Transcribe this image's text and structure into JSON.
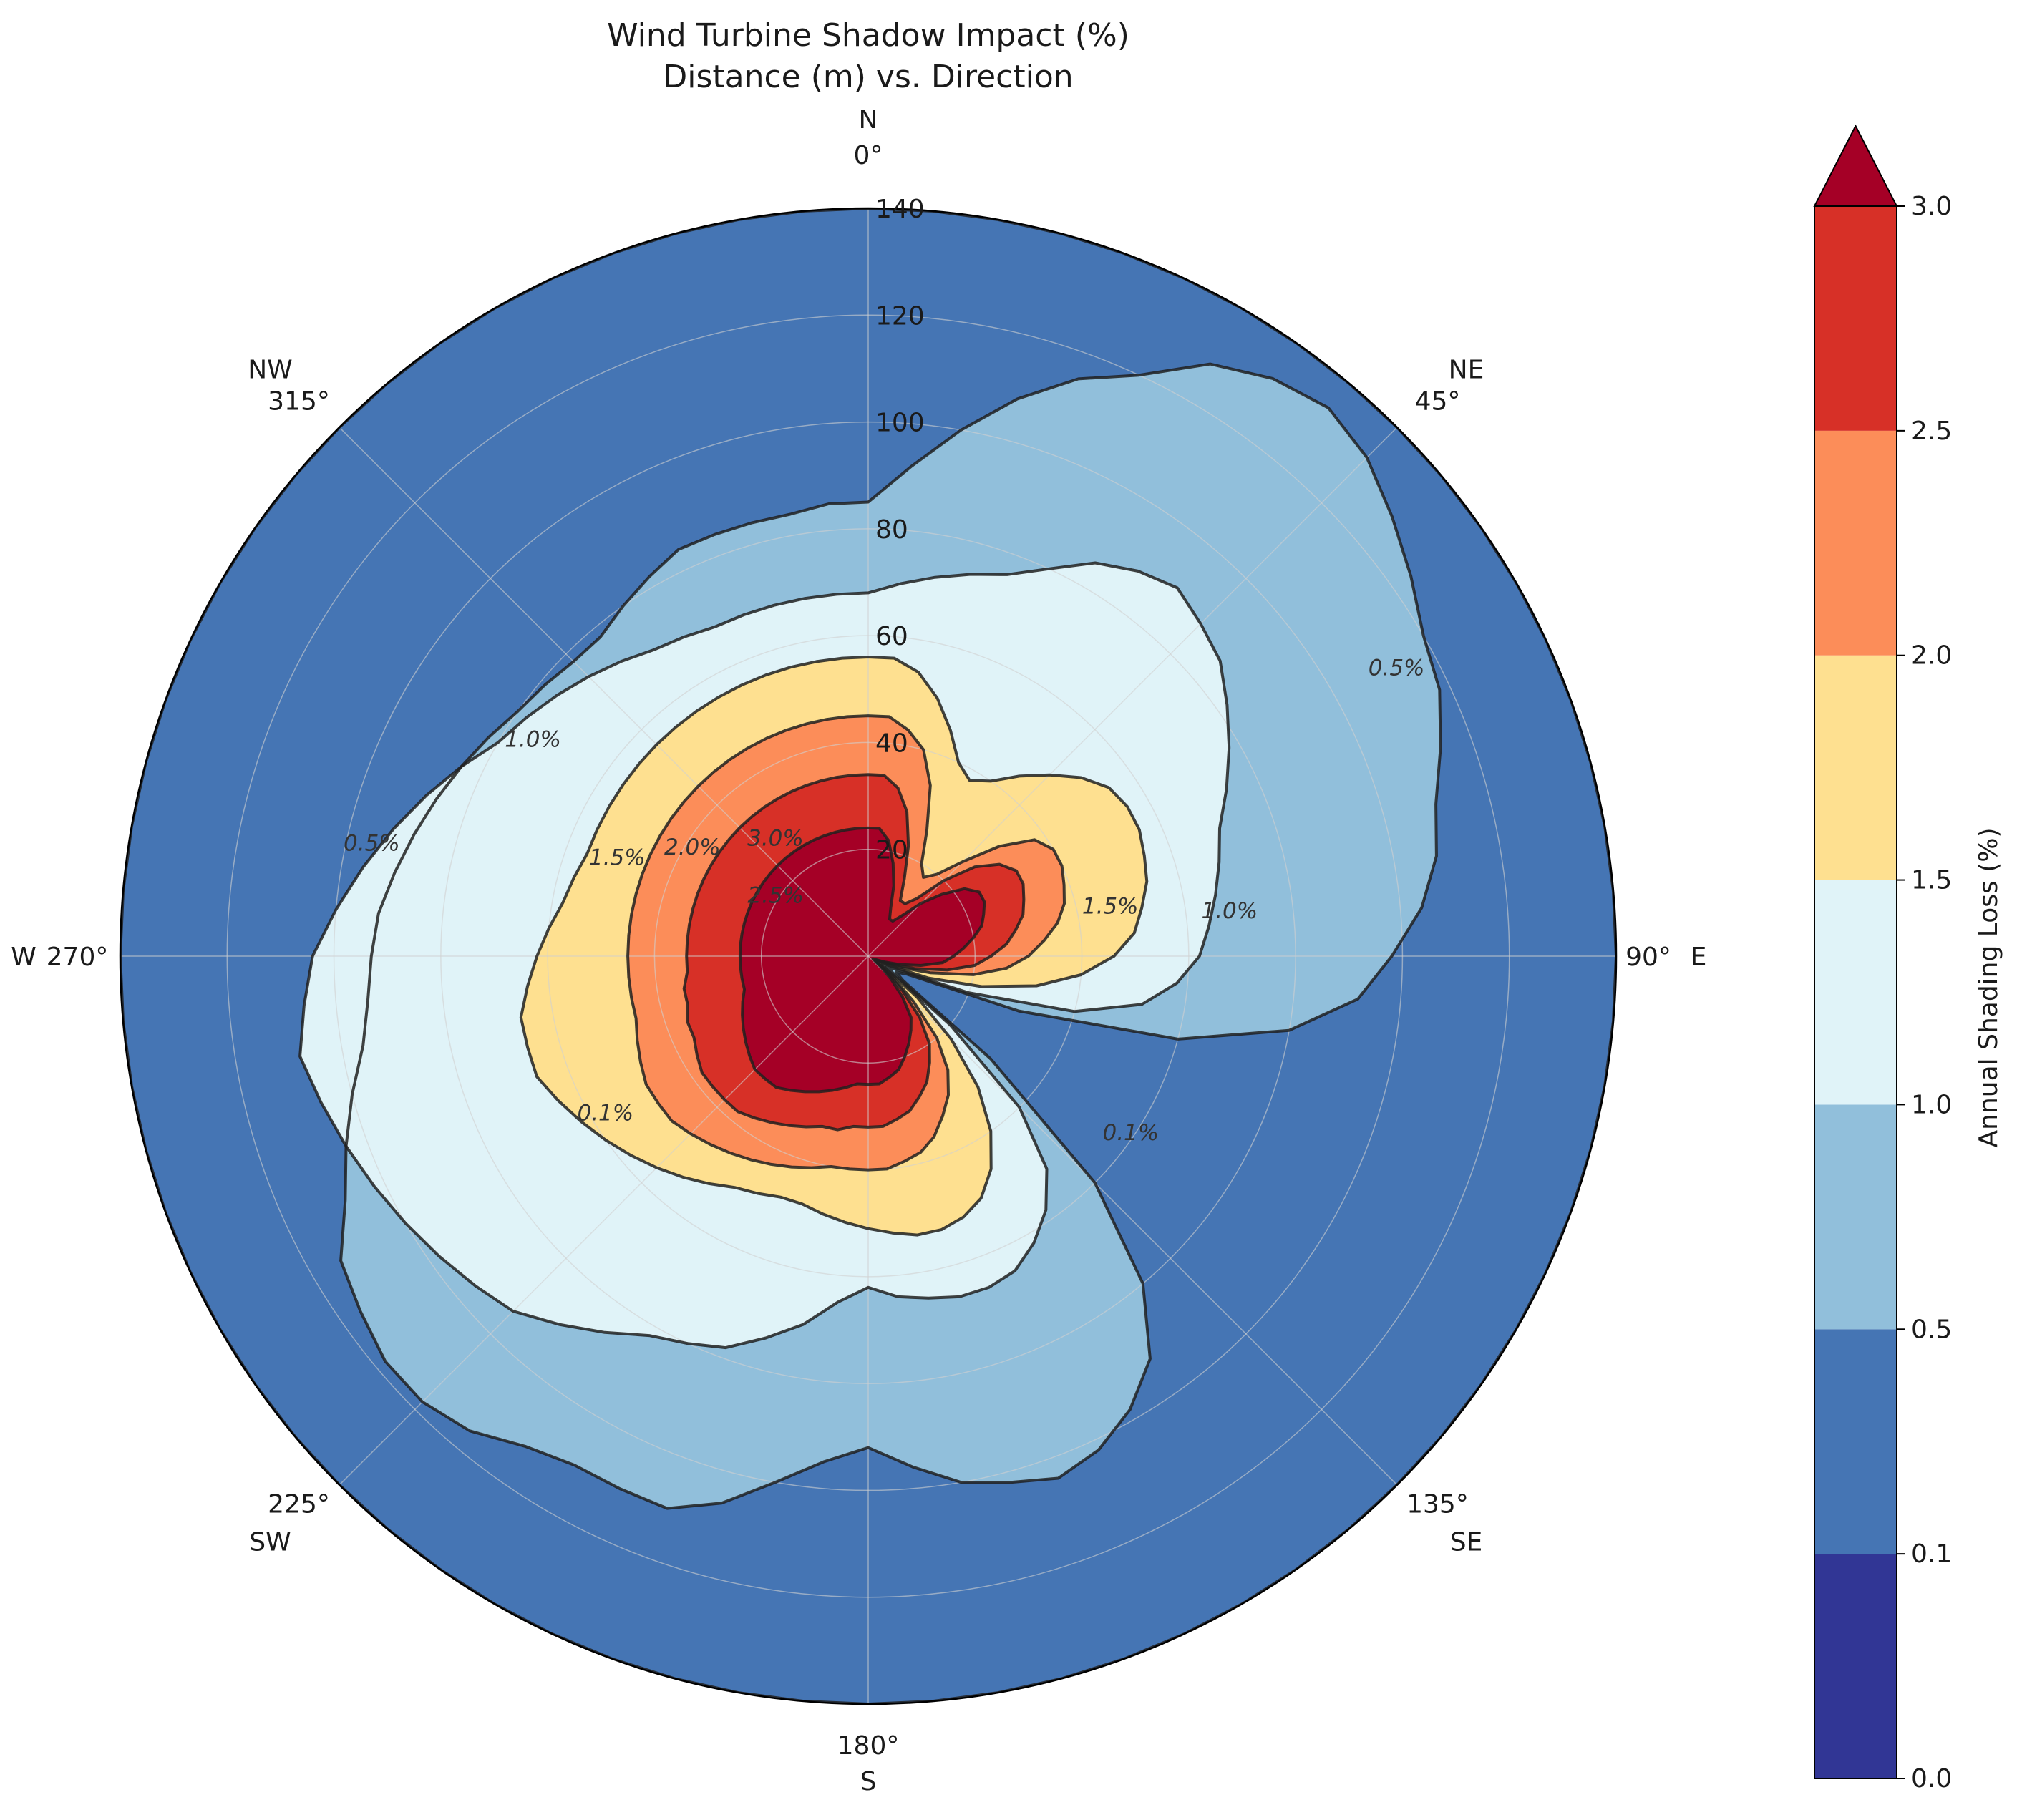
{
  "chart_data": {
    "type": "polar-filled-contour",
    "title": "Wind Turbine Shadow Impact (%)",
    "subtitle": "Distance (m) vs. Direction",
    "theta_zero": "N",
    "theta_direction": "clockwise",
    "r_ticks": [
      20,
      40,
      60,
      80,
      100,
      120,
      140
    ],
    "r_max": 140,
    "angle_ticks": [
      {
        "deg": 0,
        "label": "0°",
        "compass": "N"
      },
      {
        "deg": 45,
        "label": "45°",
        "compass": "NE"
      },
      {
        "deg": 90,
        "label": "90°",
        "compass": "E"
      },
      {
        "deg": 135,
        "label": "135°",
        "compass": "SE"
      },
      {
        "deg": 180,
        "label": "180°",
        "compass": "S"
      },
      {
        "deg": 225,
        "label": "225°",
        "compass": "SW"
      },
      {
        "deg": 270,
        "label": "270°",
        "compass": "W"
      },
      {
        "deg": 315,
        "label": "315°",
        "compass": "NW"
      }
    ],
    "levels": [
      0.0,
      0.1,
      0.5,
      1.0,
      1.5,
      2.0,
      2.5,
      3.0
    ],
    "colorbar": {
      "label": "Annual Shading Loss (%)",
      "ticks": [
        "0.0",
        "0.1",
        "0.5",
        "1.0",
        "1.5",
        "2.0",
        "2.5",
        "3.0"
      ],
      "colors": [
        "#313695",
        "#4575b4",
        "#91bfdb",
        "#e0f3f8",
        "#fee090",
        "#fc8d59",
        "#d73027"
      ],
      "extend_max_color": "#a50026",
      "extend": "max"
    },
    "contour_boundaries": [
      {
        "level": 0.1,
        "label": "0.1%",
        "r": [
          140,
          140,
          140,
          140,
          140,
          140,
          140,
          140,
          140,
          140,
          140,
          140,
          140,
          140,
          140,
          140,
          140,
          140,
          140,
          140,
          140,
          140,
          140,
          140,
          140,
          140,
          140,
          140,
          140,
          140,
          140,
          140,
          140,
          140,
          140,
          140,
          140,
          140,
          140,
          140,
          140,
          140,
          140,
          140,
          140,
          140,
          140,
          140,
          140,
          140,
          140,
          140,
          140,
          140,
          140,
          140,
          140,
          140,
          140,
          140,
          140,
          140,
          140,
          140,
          140,
          140,
          140,
          140,
          140,
          140,
          140,
          140
        ]
      },
      {
        "level": 0.5,
        "label": "0.5%",
        "r": [
          85,
          92,
          100,
          108,
          115,
          120,
          128,
          132,
          134,
          132,
          128,
          124,
          120,
          118,
          114,
          110,
          108,
          104,
          98,
          92,
          80,
          60,
          30,
          8,
          6,
          8,
          30,
          60,
          80,
          92,
          98,
          102,
          104,
          102,
          100,
          96,
          92,
          95,
          100,
          106,
          110,
          110,
          110,
          112,
          116,
          118,
          118,
          116,
          114,
          108,
          104,
          100,
          96,
          94,
          93,
          92,
          90,
          88,
          86,
          84,
          82,
          80,
          79,
          78,
          78,
          80,
          82,
          84,
          84,
          84,
          84,
          85
        ]
      },
      {
        "level": 1.0,
        "label": "1.0%",
        "r": [
          68,
          70,
          72,
          74,
          76,
          80,
          85,
          88,
          90,
          88,
          86,
          82,
          78,
          74,
          70,
          68,
          66,
          64,
          62,
          58,
          52,
          40,
          20,
          6,
          4,
          6,
          20,
          40,
          52,
          58,
          62,
          65,
          66,
          66,
          65,
          64,
          62,
          65,
          70,
          74,
          78,
          80,
          82,
          86,
          90,
          94,
          96,
          98,
          100,
          102,
          104,
          106,
          108,
          106,
          104,
          100,
          96,
          92,
          88,
          84,
          80,
          78,
          76,
          74,
          72,
          70,
          69,
          68,
          68,
          68,
          68,
          68
        ]
      },
      {
        "level": 1.5,
        "label": "1.5%",
        "r": [
          56,
          56,
          54,
          50,
          45,
          40,
          38,
          40,
          44,
          48,
          52,
          55,
          56,
          56,
          55,
          54,
          52,
          50,
          46,
          40,
          32,
          22,
          12,
          4,
          3,
          4,
          12,
          22,
          32,
          40,
          46,
          50,
          52,
          53,
          53,
          52,
          51,
          50,
          49,
          48,
          48,
          49,
          50,
          52,
          54,
          56,
          58,
          60,
          62,
          64,
          66,
          66,
          66,
          64,
          62,
          60,
          58,
          57,
          56,
          56,
          56,
          56,
          56,
          56,
          56,
          56,
          56,
          56,
          56,
          56,
          56,
          56
        ]
      },
      {
        "level": 2.0,
        "label": "2.0%",
        "r": [
          45,
          45,
          43,
          40,
          34,
          26,
          20,
          18,
          20,
          25,
          32,
          38,
          40,
          40,
          39,
          38,
          36,
          33,
          30,
          26,
          20,
          12,
          6,
          3,
          2,
          3,
          6,
          12,
          20,
          26,
          30,
          33,
          36,
          38,
          39,
          40,
          40,
          40,
          40,
          41,
          42,
          43,
          44,
          45,
          46,
          47,
          48,
          48,
          48,
          47,
          46,
          45,
          45,
          45,
          45,
          45,
          45,
          45,
          45,
          45,
          45,
          45,
          45,
          45,
          45,
          45,
          45,
          45,
          45,
          45,
          45,
          45
        ]
      },
      {
        "level": 2.5,
        "label": "2.5%",
        "r": [
          34,
          34,
          32,
          28,
          22,
          16,
          12,
          12,
          14,
          20,
          26,
          30,
          32,
          32,
          31,
          30,
          28,
          26,
          23,
          20,
          15,
          9,
          4,
          2,
          1.5,
          2,
          4,
          9,
          15,
          20,
          23,
          26,
          28,
          30,
          31,
          32,
          32,
          32,
          33,
          33,
          34,
          35,
          36,
          37,
          38,
          38,
          38,
          38,
          37,
          36,
          36,
          35,
          35,
          34,
          34,
          34,
          34,
          34,
          34,
          34,
          34,
          34,
          34,
          34,
          34,
          34,
          34,
          34,
          34,
          34,
          34,
          34
        ]
      },
      {
        "level": 3.0,
        "label": "3.0%",
        "r": [
          24,
          24,
          22,
          18,
          14,
          10,
          8,
          8,
          10,
          14,
          18,
          22,
          24,
          24,
          23,
          22,
          20,
          18,
          16,
          14,
          10,
          6,
          3,
          1.5,
          1,
          1.5,
          3,
          6,
          10,
          14,
          16,
          18,
          20,
          22,
          23,
          24,
          24,
          24,
          25,
          26,
          27,
          28,
          29,
          30,
          30,
          30,
          29,
          28,
          27,
          26,
          25,
          24,
          24,
          24,
          24,
          24,
          24,
          24,
          24,
          24,
          24,
          24,
          24,
          24,
          24,
          24,
          24,
          24,
          24,
          24,
          24,
          24
        ]
      }
    ],
    "contour_label_positions": [
      {
        "level": "0.1%",
        "deg": 125,
        "r": 60
      },
      {
        "level": "0.1%",
        "deg": 238,
        "r": 58
      },
      {
        "level": "0.5%",
        "deg": 62,
        "r": 112
      },
      {
        "level": "0.5%",
        "deg": 282,
        "r": 95
      },
      {
        "level": "1.0%",
        "deg": 84,
        "r": 68
      },
      {
        "level": "1.0%",
        "deg": 302,
        "r": 74
      },
      {
        "level": "1.5%",
        "deg": 80,
        "r": 46
      },
      {
        "level": "1.5%",
        "deg": 290,
        "r": 50
      },
      {
        "level": "2.0%",
        "deg": 300,
        "r": 38
      },
      {
        "level": "2.5%",
        "deg": 300,
        "r": 20
      },
      {
        "level": "3.0%",
        "deg": 320,
        "r": 27
      }
    ]
  }
}
